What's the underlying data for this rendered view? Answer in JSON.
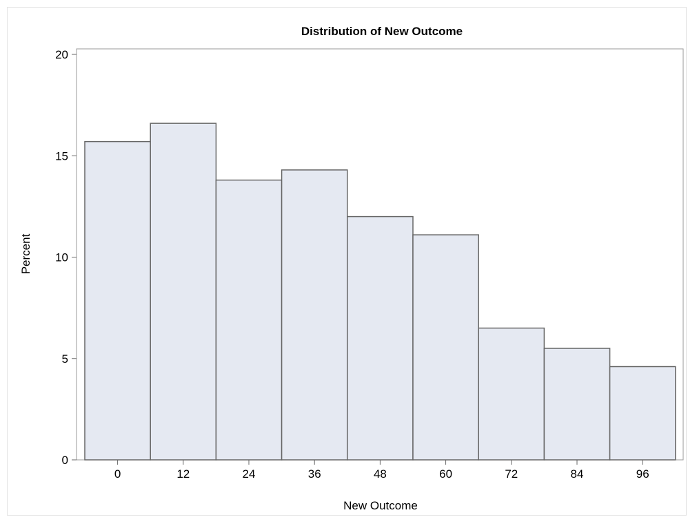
{
  "chart_data": {
    "type": "bar",
    "title": "Distribution of New Outcome",
    "xlabel": "New Outcome",
    "ylabel": "Percent",
    "categories": [
      "0",
      "12",
      "24",
      "36",
      "48",
      "60",
      "72",
      "84",
      "96"
    ],
    "values": [
      15.7,
      16.6,
      13.8,
      14.3,
      12.0,
      11.1,
      6.5,
      5.5,
      4.6
    ],
    "ylim": [
      0,
      20
    ],
    "yticks": [
      "0",
      "5",
      "10",
      "15",
      "20"
    ],
    "grid": false,
    "legend": "none",
    "colors": {
      "bar_fill": "#e5e9f2",
      "bar_stroke": "#666666",
      "axis": "#666666",
      "frame": "#999999"
    }
  }
}
